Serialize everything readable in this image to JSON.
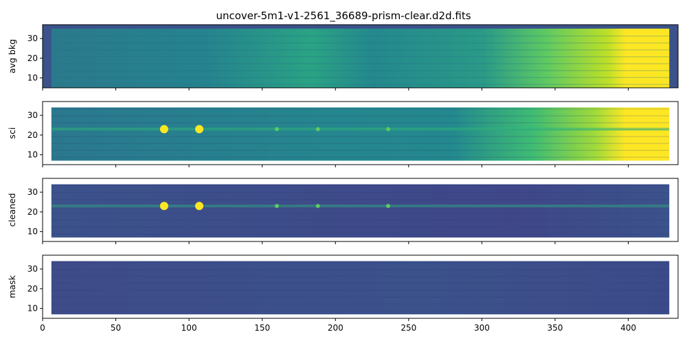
{
  "chart_data": {
    "type": "heatmap",
    "title": "uncover-5m1-v1-2561_36689-prism-clear.d2d.fits",
    "shared_x": true,
    "xlabel": "",
    "xlim": [
      0,
      434
    ],
    "xticks": [
      "0",
      "50",
      "100",
      "150",
      "200",
      "250",
      "300",
      "350",
      "400"
    ],
    "colormap": "viridis",
    "panels": [
      {
        "ylabel": "avg bkg",
        "ylim": [
          5,
          37
        ],
        "yticks": [
          "10",
          "20",
          "30"
        ],
        "x_extent": [
          6,
          428
        ],
        "y_extent": [
          5,
          35
        ],
        "features": "smooth gradient increasing to the right, saturated yellow above x≈380, faint horizontal banding"
      },
      {
        "ylabel": "sci",
        "ylim": [
          5,
          37
        ],
        "yticks": [
          "10",
          "20",
          "30"
        ],
        "x_extent": [
          6,
          428
        ],
        "y_extent": [
          7,
          34
        ],
        "trace_y": 23,
        "features": "spectral trace at y≈23 with bright knots at x≈83 and x≈107; bright yellow background above x≈380",
        "bright_spots_x": [
          83,
          107,
          160,
          188,
          236
        ]
      },
      {
        "ylabel": "cleaned",
        "ylim": [
          5,
          37
        ],
        "yticks": [
          "10",
          "20",
          "30"
        ],
        "x_extent": [
          6,
          428
        ],
        "y_extent": [
          7,
          34
        ],
        "trace_y": 23,
        "features": "background subtracted; trace at y≈23 with bright knots at x≈83 and x≈107",
        "bright_spots_x": [
          83,
          107,
          160,
          188,
          236
        ]
      },
      {
        "ylabel": "mask",
        "ylim": [
          5,
          37
        ],
        "yticks": [
          "10",
          "20",
          "30"
        ],
        "x_extent": [
          6,
          428
        ],
        "y_extent": [
          7,
          34
        ],
        "features": "mostly uniform dark blue-purple, noisier toward the right"
      }
    ]
  }
}
